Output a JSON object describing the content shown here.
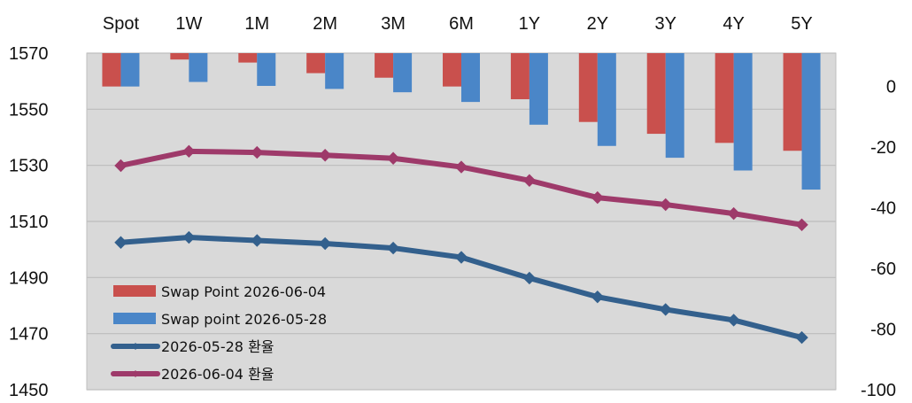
{
  "chart_data": {
    "type": "bar+line",
    "categories": [
      "Spot",
      "1W",
      "1M",
      "2M",
      "3M",
      "6M",
      "1Y",
      "2Y",
      "3Y",
      "4Y",
      "5Y"
    ],
    "left_axis": {
      "ticks": [
        "1570",
        "1550",
        "1530",
        "1510",
        "1490",
        "1470",
        "1450"
      ],
      "range": [
        1450,
        1570
      ]
    },
    "right_axis": {
      "ticks": [
        "0",
        "-20",
        "-40",
        "-60",
        "-80",
        "-100"
      ],
      "range": [
        -100,
        11
      ]
    },
    "series": [
      {
        "name": "Swap Point 2026-06-04",
        "type": "bar",
        "axis": "right",
        "color": "#c9504d",
        "values": [
          0,
          8.9,
          7.9,
          4.4,
          2.9,
          0,
          -4.2,
          -11.7,
          -15.6,
          -18.6,
          -21.2
        ]
      },
      {
        "name": "Swap point 2026-05-28",
        "type": "bar",
        "axis": "right",
        "color": "#4a86c8",
        "values": [
          0,
          1.5,
          0.2,
          -0.8,
          -1.9,
          -5.1,
          -12.6,
          -19.6,
          -23.5,
          -27.7,
          -34
        ]
      },
      {
        "name": "2026-05-28 환율",
        "type": "line",
        "axis": "left",
        "color": "#33608d",
        "values": [
          1502.5,
          1504.3,
          1503.2,
          1502.1,
          1500.5,
          1497.2,
          1489.8,
          1483.1,
          1478.6,
          1474.8,
          1468.6
        ]
      },
      {
        "name": "2026-06-04 환율",
        "type": "line",
        "axis": "left",
        "color": "#9e3a6a",
        "values": [
          1529.9,
          1535.0,
          1534.6,
          1533.6,
          1532.5,
          1529.4,
          1524.6,
          1518.5,
          1516.0,
          1512.8,
          1508.8
        ]
      }
    ],
    "grid": true,
    "legend_position": "inside bottom-left"
  }
}
